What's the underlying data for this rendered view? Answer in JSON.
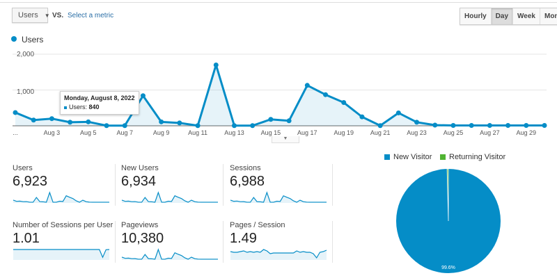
{
  "toolbar": {
    "metric_select": "Users",
    "vs_label": "VS.",
    "select_metric_link": "Select a metric",
    "granularity": [
      {
        "label": "Hourly",
        "active": false
      },
      {
        "label": "Day",
        "active": true
      },
      {
        "label": "Week",
        "active": false
      },
      {
        "label": "Month",
        "active": false
      }
    ]
  },
  "legend": {
    "series": "Users"
  },
  "tooltip": {
    "date": "Monday, August 8, 2022",
    "metric": "Users:",
    "value": "840"
  },
  "colors": {
    "primary": "#058dc7",
    "returning": "#50b432"
  },
  "chart_data": {
    "type": "line",
    "title": "Users",
    "ylim": [
      0,
      2000
    ],
    "yticks": [
      "1,000",
      "2,000"
    ],
    "x": [
      "Aug 1",
      "Aug 2",
      "Aug 3",
      "Aug 4",
      "Aug 5",
      "Aug 6",
      "Aug 7",
      "Aug 8",
      "Aug 9",
      "Aug 10",
      "Aug 11",
      "Aug 12",
      "Aug 13",
      "Aug 14",
      "Aug 15",
      "Aug 16",
      "Aug 17",
      "Aug 18",
      "Aug 19",
      "Aug 20",
      "Aug 21",
      "Aug 22",
      "Aug 23",
      "Aug 24",
      "Aug 25",
      "Aug 26",
      "Aug 27",
      "Aug 28",
      "Aug 29",
      "Aug 30"
    ],
    "xtick_labels": [
      "...",
      "Aug 3",
      "Aug 5",
      "Aug 7",
      "Aug 9",
      "Aug 11",
      "Aug 13",
      "Aug 15",
      "Aug 17",
      "Aug 19",
      "Aug 21",
      "Aug 23",
      "Aug 25",
      "Aug 27",
      "Aug 29"
    ],
    "values": [
      370,
      160,
      200,
      100,
      110,
      5,
      5,
      840,
      110,
      80,
      5,
      1700,
      5,
      5,
      180,
      140,
      1130,
      870,
      650,
      250,
      5,
      360,
      100,
      20,
      10,
      10,
      10,
      10,
      10,
      10
    ]
  },
  "metrics": [
    {
      "label": "Users",
      "value": "6,923",
      "spark": [
        370,
        160,
        200,
        100,
        110,
        5,
        5,
        840,
        110,
        80,
        5,
        1700,
        5,
        5,
        180,
        140,
        1130,
        870,
        650,
        250,
        5,
        360,
        100,
        20,
        10,
        10,
        10,
        10,
        10,
        10
      ]
    },
    {
      "label": "New Users",
      "value": "6,934",
      "spark": [
        370,
        160,
        200,
        100,
        110,
        5,
        5,
        840,
        110,
        80,
        5,
        1700,
        5,
        5,
        180,
        140,
        1130,
        870,
        650,
        250,
        5,
        360,
        100,
        20,
        10,
        10,
        10,
        10,
        10,
        10
      ]
    },
    {
      "label": "Sessions",
      "value": "6,988",
      "spark": [
        375,
        165,
        205,
        100,
        110,
        5,
        5,
        850,
        110,
        80,
        5,
        1720,
        5,
        5,
        185,
        140,
        1140,
        880,
        660,
        250,
        5,
        365,
        100,
        20,
        10,
        10,
        10,
        10,
        10,
        10
      ]
    },
    {
      "label": "Number of Sessions per User",
      "value": "1.01",
      "spark": [
        1.01,
        1.01,
        1.01,
        1.01,
        1.01,
        1.01,
        1.01,
        1.01,
        1.01,
        1.01,
        1.01,
        1.01,
        1.01,
        1.01,
        1.01,
        1.01,
        1.01,
        1.01,
        1.01,
        1.01,
        1.01,
        1.01,
        1.01,
        1.01,
        1.01,
        1.01,
        1.01,
        0.6,
        1.0,
        1.01
      ]
    },
    {
      "label": "Pageviews",
      "value": "10,380",
      "spark": [
        550,
        240,
        300,
        150,
        160,
        8,
        8,
        1250,
        160,
        120,
        8,
        2550,
        8,
        8,
        270,
        210,
        1690,
        1300,
        970,
        370,
        8,
        540,
        150,
        30,
        15,
        15,
        15,
        15,
        15,
        15
      ]
    },
    {
      "label": "Pages / Session",
      "value": "1.49",
      "spark": [
        1.5,
        1.45,
        1.45,
        1.5,
        1.55,
        1.45,
        1.5,
        1.45,
        1.5,
        1.45,
        1.65,
        1.55,
        1.35,
        1.4,
        1.4,
        1.4,
        1.4,
        1.4,
        1.4,
        1.4,
        1.55,
        1.45,
        1.5,
        1.45,
        1.45,
        1.35,
        1.05,
        1.45,
        1.5,
        1.6
      ]
    }
  ],
  "pie": {
    "legend": [
      {
        "label": "New Visitor",
        "color": "#058dc7",
        "value": 99.6
      },
      {
        "label": "Returning Visitor",
        "color": "#50b432",
        "value": 0.4
      }
    ],
    "slice_label": "99.6%"
  }
}
